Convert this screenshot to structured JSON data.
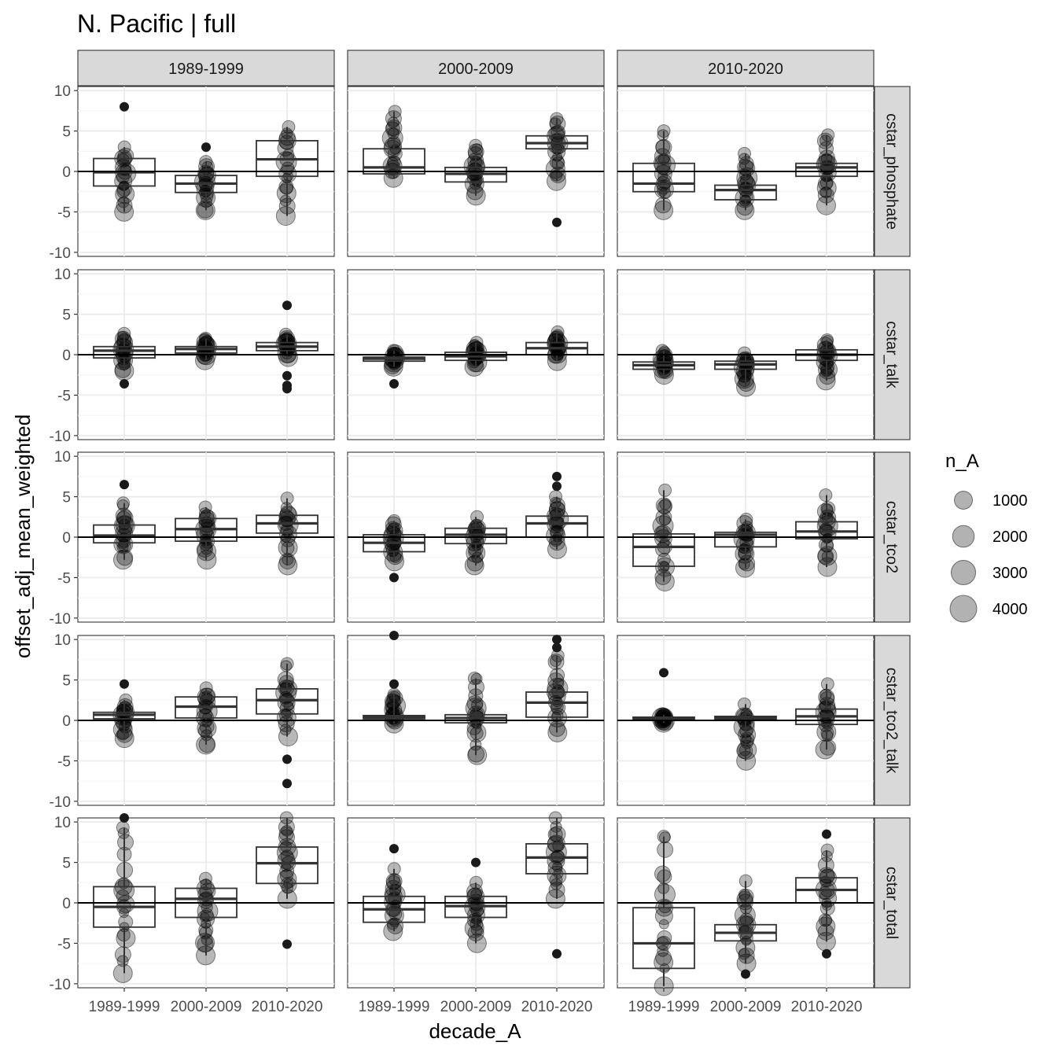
{
  "chart_data": {
    "type": "boxplot",
    "title": "N. Pacific | full",
    "xlabel": "decade_A",
    "ylabel": "offset_adj_mean_weighted",
    "col_facets": [
      "1989-1999",
      "2000-2009",
      "2010-2020"
    ],
    "row_facets": [
      "cstar_phosphate",
      "cstar_talk",
      "cstar_tco2",
      "cstar_tco2_talk",
      "cstar_total"
    ],
    "categories": [
      "1989-1999",
      "2000-2009",
      "2010-2020"
    ],
    "ylim": [
      -10.5,
      10.5
    ],
    "yticks": [
      -10,
      -5,
      0,
      5,
      10
    ],
    "ytick_labels": [
      "-10",
      "-5",
      "0",
      "5",
      "10"
    ],
    "reference_line_y": 0,
    "grid": true,
    "legend": {
      "title": "n_A",
      "position": "right",
      "sizes": [
        1000,
        2000,
        3000,
        4000
      ],
      "labels": [
        "1000",
        "2000",
        "3000",
        "4000"
      ]
    },
    "panels": [
      {
        "row": "cstar_phosphate",
        "col": "1989-1999",
        "boxes": [
          {
            "x": "1989-1999",
            "q1": -1.8,
            "median": -0.1,
            "q3": 1.6,
            "whisker_low": -5.0,
            "whisker_high": 3.0,
            "outliers": [
              8.0
            ]
          },
          {
            "x": "2000-2009",
            "q1": -2.6,
            "median": -1.5,
            "q3": -0.5,
            "whisker_low": -4.8,
            "whisker_high": 1.2,
            "outliers": [
              3.0
            ]
          },
          {
            "x": "2010-2020",
            "q1": -0.6,
            "median": 1.5,
            "q3": 3.8,
            "whisker_low": -5.5,
            "whisker_high": 5.5,
            "outliers": []
          }
        ]
      },
      {
        "row": "cstar_phosphate",
        "col": "2000-2009",
        "boxes": [
          {
            "x": "1989-1999",
            "q1": -0.3,
            "median": 0.5,
            "q3": 2.8,
            "whisker_low": -0.8,
            "whisker_high": 7.4,
            "outliers": []
          },
          {
            "x": "2000-2009",
            "q1": -1.3,
            "median": -0.3,
            "q3": 0.5,
            "whisker_low": -3.0,
            "whisker_high": 3.2,
            "outliers": []
          },
          {
            "x": "2010-2020",
            "q1": 2.8,
            "median": 3.5,
            "q3": 4.4,
            "whisker_low": -1.2,
            "whisker_high": 6.5,
            "outliers": [
              -6.3
            ]
          }
        ]
      },
      {
        "row": "cstar_phosphate",
        "col": "2010-2020",
        "boxes": [
          {
            "x": "1989-1999",
            "q1": -2.5,
            "median": -1.5,
            "q3": 1.0,
            "whisker_low": -4.8,
            "whisker_high": 5.0,
            "outliers": []
          },
          {
            "x": "2000-2009",
            "q1": -3.5,
            "median": -2.3,
            "q3": -1.7,
            "whisker_low": -4.8,
            "whisker_high": 2.2,
            "outliers": []
          },
          {
            "x": "2010-2020",
            "q1": -0.6,
            "median": 0.5,
            "q3": 1.0,
            "whisker_low": -4.2,
            "whisker_high": 4.5,
            "outliers": []
          }
        ]
      },
      {
        "row": "cstar_talk",
        "col": "1989-1999",
        "boxes": [
          {
            "x": "1989-1999",
            "q1": -0.4,
            "median": 0.5,
            "q3": 1.0,
            "whisker_low": -2.0,
            "whisker_high": 2.6,
            "outliers": [
              -3.6
            ]
          },
          {
            "x": "2000-2009",
            "q1": 0.2,
            "median": 0.7,
            "q3": 1.0,
            "whisker_low": -0.7,
            "whisker_high": 2.0,
            "outliers": []
          },
          {
            "x": "2010-2020",
            "q1": 0.5,
            "median": 1.0,
            "q3": 1.5,
            "whisker_low": -0.3,
            "whisker_high": 2.5,
            "outliers": [
              6.1,
              -2.6,
              -3.8,
              -4.2
            ]
          }
        ]
      },
      {
        "row": "cstar_talk",
        "col": "2000-2009",
        "boxes": [
          {
            "x": "1989-1999",
            "q1": -0.8,
            "median": -0.5,
            "q3": -0.3,
            "whisker_low": -1.5,
            "whisker_high": 0.5,
            "outliers": [
              -3.6
            ]
          },
          {
            "x": "2000-2009",
            "q1": -0.7,
            "median": -0.2,
            "q3": 0.3,
            "whisker_low": -1.5,
            "whisker_high": 1.5,
            "outliers": []
          },
          {
            "x": "2010-2020",
            "q1": 0.0,
            "median": 0.8,
            "q3": 1.5,
            "whisker_low": -0.8,
            "whisker_high": 2.8,
            "outliers": []
          }
        ]
      },
      {
        "row": "cstar_talk",
        "col": "2010-2020",
        "boxes": [
          {
            "x": "1989-1999",
            "q1": -1.8,
            "median": -1.3,
            "q3": -0.9,
            "whisker_low": -2.5,
            "whisker_high": 0.5,
            "outliers": []
          },
          {
            "x": "2000-2009",
            "q1": -1.8,
            "median": -1.2,
            "q3": -0.8,
            "whisker_low": -4.0,
            "whisker_high": 0.2,
            "outliers": []
          },
          {
            "x": "2010-2020",
            "q1": -0.7,
            "median": 0.0,
            "q3": 0.6,
            "whisker_low": -3.2,
            "whisker_high": 1.8,
            "outliers": []
          }
        ]
      },
      {
        "row": "cstar_tco2",
        "col": "1989-1999",
        "boxes": [
          {
            "x": "1989-1999",
            "q1": -0.7,
            "median": 0.2,
            "q3": 1.5,
            "whisker_low": -2.8,
            "whisker_high": 4.2,
            "outliers": [
              6.5
            ]
          },
          {
            "x": "2000-2009",
            "q1": -0.5,
            "median": 1.0,
            "q3": 2.3,
            "whisker_low": -2.8,
            "whisker_high": 3.7,
            "outliers": []
          },
          {
            "x": "2010-2020",
            "q1": 0.5,
            "median": 1.7,
            "q3": 2.7,
            "whisker_low": -3.5,
            "whisker_high": 4.8,
            "outliers": []
          }
        ]
      },
      {
        "row": "cstar_tco2",
        "col": "2000-2009",
        "boxes": [
          {
            "x": "1989-1999",
            "q1": -1.8,
            "median": -0.7,
            "q3": 0.3,
            "whisker_low": -3.0,
            "whisker_high": 2.0,
            "outliers": [
              -5.0
            ]
          },
          {
            "x": "2000-2009",
            "q1": -0.8,
            "median": 0.3,
            "q3": 1.1,
            "whisker_low": -3.5,
            "whisker_high": 2.5,
            "outliers": []
          },
          {
            "x": "2010-2020",
            "q1": 0.0,
            "median": 1.7,
            "q3": 2.6,
            "whisker_low": -1.5,
            "whisker_high": 5.0,
            "outliers": [
              7.5,
              6.3
            ]
          }
        ]
      },
      {
        "row": "cstar_tco2",
        "col": "2010-2020",
        "boxes": [
          {
            "x": "1989-1999",
            "q1": -3.6,
            "median": -1.2,
            "q3": 0.4,
            "whisker_low": -5.5,
            "whisker_high": 5.8,
            "outliers": []
          },
          {
            "x": "2000-2009",
            "q1": -1.2,
            "median": 0.3,
            "q3": 0.6,
            "whisker_low": -3.8,
            "whisker_high": 2.2,
            "outliers": []
          },
          {
            "x": "2010-2020",
            "q1": -0.2,
            "median": 0.7,
            "q3": 1.9,
            "whisker_low": -3.7,
            "whisker_high": 5.2,
            "outliers": []
          }
        ]
      },
      {
        "row": "cstar_tco2_talk",
        "col": "1989-1999",
        "boxes": [
          {
            "x": "1989-1999",
            "q1": 0.2,
            "median": 0.7,
            "q3": 1.0,
            "whisker_low": -2.2,
            "whisker_high": 2.5,
            "outliers": [
              4.5
            ]
          },
          {
            "x": "2000-2009",
            "q1": 0.3,
            "median": 1.7,
            "q3": 2.9,
            "whisker_low": -3.0,
            "whisker_high": 4.0,
            "outliers": []
          },
          {
            "x": "2010-2020",
            "q1": 0.8,
            "median": 2.5,
            "q3": 3.9,
            "whisker_low": -2.0,
            "whisker_high": 7.0,
            "outliers": [
              -4.8,
              -7.8
            ]
          }
        ]
      },
      {
        "row": "cstar_tco2_talk",
        "col": "2000-2009",
        "boxes": [
          {
            "x": "1989-1999",
            "q1": 0.2,
            "median": 0.4,
            "q3": 0.6,
            "whisker_low": -0.4,
            "whisker_high": 3.2,
            "outliers": [
              10.5,
              4.5
            ]
          },
          {
            "x": "2000-2009",
            "q1": -0.3,
            "median": 0.3,
            "q3": 0.7,
            "whisker_low": -4.3,
            "whisker_high": 5.2,
            "outliers": []
          },
          {
            "x": "2010-2020",
            "q1": 0.4,
            "median": 2.2,
            "q3": 3.5,
            "whisker_low": -1.5,
            "whisker_high": 8.0,
            "outliers": [
              10.0,
              9.0
            ]
          }
        ]
      },
      {
        "row": "cstar_tco2_talk",
        "col": "2010-2020",
        "boxes": [
          {
            "x": "1989-1999",
            "q1": 0.1,
            "median": 0.2,
            "q3": 0.4,
            "whisker_low": -0.3,
            "whisker_high": 0.7,
            "outliers": [
              5.9
            ]
          },
          {
            "x": "2000-2009",
            "q1": 0.1,
            "median": 0.3,
            "q3": 0.5,
            "whisker_low": -5.0,
            "whisker_high": 2.0,
            "outliers": []
          },
          {
            "x": "2010-2020",
            "q1": -0.5,
            "median": 0.5,
            "q3": 1.4,
            "whisker_low": -3.6,
            "whisker_high": 4.5,
            "outliers": []
          }
        ]
      },
      {
        "row": "cstar_total",
        "col": "1989-1999",
        "boxes": [
          {
            "x": "1989-1999",
            "q1": -3.0,
            "median": -0.5,
            "q3": 2.0,
            "whisker_low": -8.7,
            "whisker_high": 9.3,
            "outliers": [
              10.5
            ]
          },
          {
            "x": "2000-2009",
            "q1": -1.8,
            "median": 0.5,
            "q3": 1.8,
            "whisker_low": -6.5,
            "whisker_high": 3.0,
            "outliers": []
          },
          {
            "x": "2010-2020",
            "q1": 2.4,
            "median": 4.9,
            "q3": 6.9,
            "whisker_low": 0.5,
            "whisker_high": 10.5,
            "outliers": [
              -5.1
            ]
          }
        ]
      },
      {
        "row": "cstar_total",
        "col": "2000-2009",
        "boxes": [
          {
            "x": "1989-1999",
            "q1": -2.4,
            "median": -0.8,
            "q3": 0.8,
            "whisker_low": -3.5,
            "whisker_high": 4.2,
            "outliers": [
              6.7
            ]
          },
          {
            "x": "2000-2009",
            "q1": -1.8,
            "median": -0.4,
            "q3": 0.8,
            "whisker_low": -5.0,
            "whisker_high": 2.5,
            "outliers": [
              5.0
            ]
          },
          {
            "x": "2010-2020",
            "q1": 3.6,
            "median": 5.6,
            "q3": 7.3,
            "whisker_low": 0.5,
            "whisker_high": 10.5,
            "outliers": [
              -6.3
            ]
          }
        ]
      },
      {
        "row": "cstar_total",
        "col": "2010-2020",
        "boxes": [
          {
            "x": "1989-1999",
            "q1": -8.1,
            "median": -5.0,
            "q3": -0.6,
            "whisker_low": -10.3,
            "whisker_high": 8.2,
            "outliers": []
          },
          {
            "x": "2000-2009",
            "q1": -4.7,
            "median": -3.7,
            "q3": -2.7,
            "whisker_low": -7.5,
            "whisker_high": 2.7,
            "outliers": [
              -8.8
            ]
          },
          {
            "x": "2010-2020",
            "q1": 0.0,
            "median": 1.6,
            "q3": 3.1,
            "whisker_low": -4.8,
            "whisker_high": 6.5,
            "outliers": [
              8.5,
              -6.3
            ]
          }
        ]
      }
    ]
  }
}
